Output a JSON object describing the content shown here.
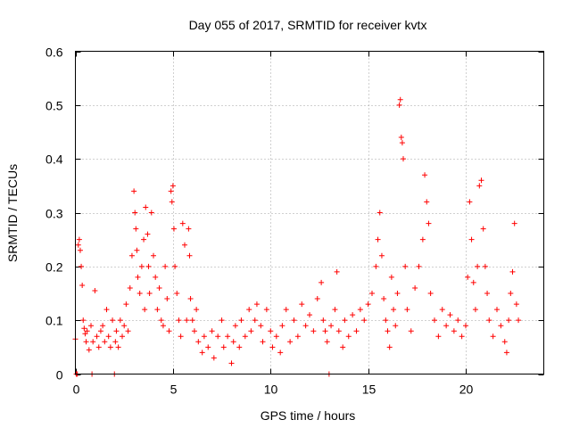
{
  "chart_data": {
    "type": "scatter",
    "title": "Day 055 of 2017, SRMTID for receiver kvtx",
    "xlabel": "GPS time / hours",
    "ylabel": "SRMTID / TECUs",
    "xlim": [
      0,
      24
    ],
    "ylim": [
      0,
      0.6
    ],
    "xticks": [
      0,
      5,
      10,
      15,
      20
    ],
    "yticks": [
      0,
      0.1,
      0.2,
      0.3,
      0.4,
      0.5,
      0.6
    ],
    "xtick_labels": [
      "0",
      "5",
      "10",
      "15",
      "20"
    ],
    "ytick_labels": [
      "0",
      "0.1",
      "0.2",
      "0.3",
      "0.4",
      "0.5",
      "0.6"
    ],
    "grid": true,
    "marker": "+",
    "color": "#ff0000",
    "series": [
      {
        "name": "SRMTID",
        "points": [
          [
            0.0,
            0.065
          ],
          [
            0.05,
            0.0
          ],
          [
            0.1,
            0.0
          ],
          [
            0.15,
            0.24
          ],
          [
            0.2,
            0.25
          ],
          [
            0.25,
            0.23
          ],
          [
            0.3,
            0.2
          ],
          [
            0.35,
            0.165
          ],
          [
            0.4,
            0.1
          ],
          [
            0.45,
            0.085
          ],
          [
            0.5,
            0.075
          ],
          [
            0.55,
            0.06
          ],
          [
            0.6,
            0.08
          ],
          [
            0.7,
            0.045
          ],
          [
            0.8,
            0.09
          ],
          [
            0.85,
            0.0
          ],
          [
            0.9,
            0.06
          ],
          [
            1.0,
            0.155
          ],
          [
            1.1,
            0.07
          ],
          [
            1.2,
            0.05
          ],
          [
            1.3,
            0.08
          ],
          [
            1.4,
            0.09
          ],
          [
            1.5,
            0.06
          ],
          [
            1.6,
            0.12
          ],
          [
            1.7,
            0.07
          ],
          [
            1.8,
            0.05
          ],
          [
            1.9,
            0.1
          ],
          [
            2.0,
            0.0
          ],
          [
            2.05,
            0.06
          ],
          [
            2.1,
            0.08
          ],
          [
            2.2,
            0.05
          ],
          [
            2.3,
            0.1
          ],
          [
            2.4,
            0.07
          ],
          [
            2.5,
            0.09
          ],
          [
            2.6,
            0.13
          ],
          [
            2.7,
            0.08
          ],
          [
            2.8,
            0.16
          ],
          [
            2.9,
            0.22
          ],
          [
            3.0,
            0.34
          ],
          [
            3.05,
            0.3
          ],
          [
            3.1,
            0.27
          ],
          [
            3.15,
            0.23
          ],
          [
            3.2,
            0.18
          ],
          [
            3.3,
            0.15
          ],
          [
            3.4,
            0.2
          ],
          [
            3.5,
            0.25
          ],
          [
            3.55,
            0.12
          ],
          [
            3.6,
            0.31
          ],
          [
            3.7,
            0.26
          ],
          [
            3.75,
            0.2
          ],
          [
            3.8,
            0.15
          ],
          [
            3.9,
            0.3
          ],
          [
            4.0,
            0.22
          ],
          [
            4.1,
            0.18
          ],
          [
            4.2,
            0.12
          ],
          [
            4.3,
            0.16
          ],
          [
            4.4,
            0.1
          ],
          [
            4.5,
            0.09
          ],
          [
            4.6,
            0.2
          ],
          [
            4.7,
            0.14
          ],
          [
            4.8,
            0.08
          ],
          [
            4.9,
            0.34
          ],
          [
            4.95,
            0.32
          ],
          [
            5.0,
            0.35
          ],
          [
            5.05,
            0.27
          ],
          [
            5.1,
            0.2
          ],
          [
            5.2,
            0.15
          ],
          [
            5.3,
            0.1
          ],
          [
            5.4,
            0.07
          ],
          [
            5.5,
            0.28
          ],
          [
            5.6,
            0.24
          ],
          [
            5.7,
            0.1
          ],
          [
            5.8,
            0.27
          ],
          [
            5.85,
            0.22
          ],
          [
            5.9,
            0.14
          ],
          [
            6.0,
            0.1
          ],
          [
            6.1,
            0.08
          ],
          [
            6.2,
            0.12
          ],
          [
            6.3,
            0.06
          ],
          [
            6.5,
            0.04
          ],
          [
            6.6,
            0.07
          ],
          [
            6.8,
            0.05
          ],
          [
            7.0,
            0.08
          ],
          [
            7.1,
            0.03
          ],
          [
            7.3,
            0.07
          ],
          [
            7.5,
            0.1
          ],
          [
            7.6,
            0.05
          ],
          [
            7.8,
            0.07
          ],
          [
            8.0,
            0.02
          ],
          [
            8.1,
            0.06
          ],
          [
            8.2,
            0.09
          ],
          [
            8.4,
            0.05
          ],
          [
            8.5,
            0.1
          ],
          [
            8.7,
            0.07
          ],
          [
            8.9,
            0.12
          ],
          [
            9.0,
            0.08
          ],
          [
            9.2,
            0.1
          ],
          [
            9.3,
            0.13
          ],
          [
            9.5,
            0.09
          ],
          [
            9.6,
            0.06
          ],
          [
            9.8,
            0.12
          ],
          [
            10.0,
            0.08
          ],
          [
            10.1,
            0.05
          ],
          [
            10.3,
            0.07
          ],
          [
            10.5,
            0.04
          ],
          [
            10.6,
            0.09
          ],
          [
            10.8,
            0.12
          ],
          [
            11.0,
            0.06
          ],
          [
            11.2,
            0.1
          ],
          [
            11.4,
            0.07
          ],
          [
            11.6,
            0.13
          ],
          [
            11.8,
            0.09
          ],
          [
            12.0,
            0.11
          ],
          [
            12.2,
            0.08
          ],
          [
            12.4,
            0.14
          ],
          [
            12.6,
            0.17
          ],
          [
            12.7,
            0.1
          ],
          [
            12.8,
            0.08
          ],
          [
            12.9,
            0.06
          ],
          [
            13.0,
            0.0
          ],
          [
            13.1,
            0.09
          ],
          [
            13.3,
            0.12
          ],
          [
            13.4,
            0.19
          ],
          [
            13.5,
            0.08
          ],
          [
            13.7,
            0.05
          ],
          [
            13.8,
            0.1
          ],
          [
            14.0,
            0.07
          ],
          [
            14.2,
            0.11
          ],
          [
            14.4,
            0.08
          ],
          [
            14.6,
            0.12
          ],
          [
            14.8,
            0.1
          ],
          [
            15.0,
            0.13
          ],
          [
            15.2,
            0.15
          ],
          [
            15.4,
            0.2
          ],
          [
            15.5,
            0.25
          ],
          [
            15.6,
            0.3
          ],
          [
            15.7,
            0.22
          ],
          [
            15.8,
            0.14
          ],
          [
            15.9,
            0.1
          ],
          [
            16.0,
            0.08
          ],
          [
            16.1,
            0.05
          ],
          [
            16.2,
            0.18
          ],
          [
            16.3,
            0.12
          ],
          [
            16.4,
            0.09
          ],
          [
            16.5,
            0.15
          ],
          [
            16.6,
            0.5
          ],
          [
            16.65,
            0.51
          ],
          [
            16.7,
            0.44
          ],
          [
            16.75,
            0.43
          ],
          [
            16.8,
            0.4
          ],
          [
            16.9,
            0.2
          ],
          [
            17.0,
            0.12
          ],
          [
            17.2,
            0.08
          ],
          [
            17.4,
            0.16
          ],
          [
            17.6,
            0.2
          ],
          [
            17.8,
            0.25
          ],
          [
            17.9,
            0.37
          ],
          [
            18.0,
            0.32
          ],
          [
            18.1,
            0.28
          ],
          [
            18.2,
            0.15
          ],
          [
            18.4,
            0.1
          ],
          [
            18.6,
            0.07
          ],
          [
            18.8,
            0.12
          ],
          [
            19.0,
            0.09
          ],
          [
            19.2,
            0.11
          ],
          [
            19.4,
            0.08
          ],
          [
            19.6,
            0.1
          ],
          [
            19.8,
            0.07
          ],
          [
            20.0,
            0.09
          ],
          [
            20.1,
            0.18
          ],
          [
            20.2,
            0.32
          ],
          [
            20.3,
            0.25
          ],
          [
            20.4,
            0.17
          ],
          [
            20.5,
            0.12
          ],
          [
            20.6,
            0.2
          ],
          [
            20.7,
            0.35
          ],
          [
            20.8,
            0.36
          ],
          [
            20.9,
            0.27
          ],
          [
            21.0,
            0.2
          ],
          [
            21.1,
            0.15
          ],
          [
            21.2,
            0.1
          ],
          [
            21.4,
            0.07
          ],
          [
            21.6,
            0.12
          ],
          [
            21.8,
            0.09
          ],
          [
            22.0,
            0.06
          ],
          [
            22.1,
            0.04
          ],
          [
            22.2,
            0.1
          ],
          [
            22.3,
            0.15
          ],
          [
            22.4,
            0.19
          ],
          [
            22.5,
            0.28
          ],
          [
            22.6,
            0.13
          ],
          [
            22.7,
            0.1
          ]
        ]
      }
    ]
  }
}
